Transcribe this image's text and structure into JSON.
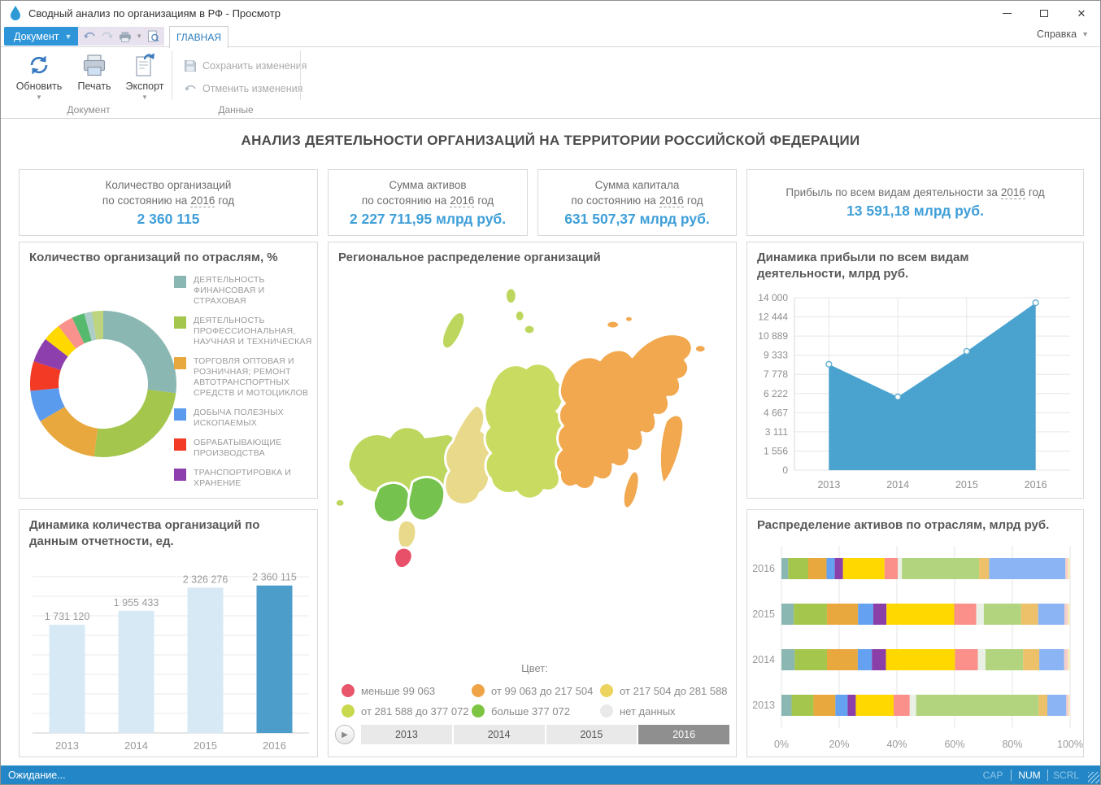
{
  "window": {
    "title": "Сводный анализ по организациям в РФ - Просмотр",
    "help_label": "Справка"
  },
  "menubar": {
    "document_button": "Документ",
    "active_tab": "ГЛАВНАЯ"
  },
  "ribbon": {
    "refresh_label": "Обновить",
    "print_label": "Печать",
    "export_label": "Экспорт",
    "save_label": "Сохранить изменения",
    "undo_label": "Отменить изменения",
    "group_document": "Документ",
    "group_data": "Данные"
  },
  "page_title": "АНАЛИЗ ДЕЯТЕЛЬНОСТИ ОРГАНИЗАЦИЙ НА ТЕРРИТОРИИ РОССИЙСКОЙ ФЕДЕРАЦИИ",
  "kpis": [
    {
      "line1": "Количество организаций",
      "line2a": "по состоянию на",
      "year": "2016",
      "line2b": "год",
      "value": "2 360 115"
    },
    {
      "line1": "Сумма активов",
      "line2a": "по состоянию на",
      "year": "2016",
      "line2b": "год",
      "value": "2 227 711,95 млрд руб."
    },
    {
      "line1": "Сумма капитала",
      "line2a": "по состоянию на",
      "year": "2016",
      "line2b": "год",
      "value": "631 507,37 млрд руб."
    },
    {
      "line1a": "Прибыль по всем видам деятельности за",
      "year": "2016",
      "line1b": "год",
      "value": "13 591,18 млрд руб."
    }
  ],
  "map": {
    "title": "Региональное распределение организаций",
    "legend_title": "Цвет:",
    "legend": [
      {
        "label": "меньше 99 063",
        "color": "#e8566b"
      },
      {
        "label": "от 99 063 до 217 504",
        "color": "#f0a347"
      },
      {
        "label": "от 217 504 до 281 588",
        "color": "#ecd45f"
      },
      {
        "label": "от 281 588 до 377 072",
        "color": "#c8d94e"
      },
      {
        "label": "больше 377 072",
        "color": "#7cc442"
      },
      {
        "label": "нет данных",
        "color": "#e9e9e9"
      }
    ],
    "regions": [
      {
        "name": "northwest",
        "color": "#bdd75e"
      },
      {
        "name": "kaliningrad",
        "color": "#bdd75e"
      },
      {
        "name": "volga-ural",
        "color": "#e9d98b"
      },
      {
        "name": "central-1",
        "color": "#76c24f"
      },
      {
        "name": "central-2",
        "color": "#76c24f"
      },
      {
        "name": "south",
        "color": "#e9d98b"
      },
      {
        "name": "crimea",
        "color": "#e8506a"
      },
      {
        "name": "siberia",
        "color": "#c9db60"
      },
      {
        "name": "far-east",
        "color": "#f1a84f"
      },
      {
        "name": "kamchatka",
        "color": "#f1a84f"
      },
      {
        "name": "sakhalin",
        "color": "#f1a84f"
      },
      {
        "name": "north-islands",
        "color": "#bdd75e"
      },
      {
        "name": "east-islands",
        "color": "#f1a84f"
      }
    ],
    "timeline": {
      "years": [
        "2013",
        "2014",
        "2015",
        "2016"
      ],
      "selected": "2016"
    }
  },
  "chart_data": [
    {
      "id": "industry-donut",
      "type": "pie",
      "donut": true,
      "title": "Количество организаций по отраслям, %",
      "values": [
        27,
        25,
        14.5,
        7,
        6.5,
        5.5,
        4,
        3.5,
        2.8,
        1.7,
        2.5
      ],
      "colors": [
        "#8ab7b2",
        "#a4c64d",
        "#e9a83e",
        "#5b9bee",
        "#f23a25",
        "#8e3fae",
        "#ffd800",
        "#f9928c",
        "#55b96e",
        "#adcdc9",
        "#bdd37e"
      ],
      "legend_position": "right",
      "legend": [
        "ДЕЯТЕЛЬНОСТЬ ФИНАНСОВАЯ И СТРАХОВАЯ",
        "ДЕЯТЕЛЬНОСТЬ ПРОФЕССИОНАЛЬНАЯ, НАУЧНАЯ И ТЕХНИЧЕСКАЯ",
        "ТОРГОВЛЯ ОПТОВАЯ И РОЗНИЧНАЯ; РЕМОНТ АВТОТРАНСПОРТНЫХ СРЕДСТВ И МОТОЦИКЛОВ",
        "ДОБЫЧА ПОЛЕЗНЫХ ИСКОПАЕМЫХ",
        "ОБРАБАТЫВАЮЩИЕ ПРОИЗВОДСТВА",
        "ТРАНСПОРТИРОВКА И ХРАНЕНИЕ"
      ]
    },
    {
      "id": "profit-area",
      "type": "area",
      "title": "Динамика прибыли по всем видам деятельности, млрд руб.",
      "x": [
        "2013",
        "2014",
        "2015",
        "2016"
      ],
      "values": [
        8600,
        5950,
        9650,
        13591.18
      ],
      "ylim": [
        0,
        14000
      ],
      "yticks": [
        "0",
        "1 556",
        "3 111",
        "4 667",
        "6 222",
        "7 778",
        "9 333",
        "10 889",
        "12 444",
        "14 000"
      ],
      "color": "#4aa3cf",
      "marker_stroke": "#62afd0",
      "grid": true
    },
    {
      "id": "orgs-bar",
      "type": "bar",
      "title": "Динамика количества организаций по данным отчетности, ед.",
      "categories": [
        "2013",
        "2014",
        "2015",
        "2016"
      ],
      "values": [
        1731120,
        1955433,
        2326276,
        2360115
      ],
      "value_labels": [
        "1 731 120",
        "1 955 433",
        "2 326 276",
        "2 360 115"
      ],
      "bar_colors": [
        "#d7e9f5",
        "#d7e9f5",
        "#d7e9f5",
        "#4c9dc9"
      ],
      "ylim": [
        0,
        2500000
      ],
      "grid": true
    },
    {
      "id": "assets-stacked",
      "type": "stacked-bar-horizontal",
      "title": "Распределение активов по отраслям, млрд руб.",
      "categories": [
        "2016",
        "2015",
        "2014",
        "2013"
      ],
      "xticks": [
        "0%",
        "20%",
        "40%",
        "60%",
        "80%",
        "100%"
      ],
      "colors": [
        "#8ab7b2",
        "#a4c64d",
        "#e9a83e",
        "#64a1f0",
        "#8b3fa8",
        "#ffd800",
        "#fb8f8a",
        "#e9f0e5",
        "#b2d47f",
        "#ecc169",
        "#8ab4f4",
        "#f6cdc8",
        "#f5ecc0"
      ],
      "rows": {
        "2016": [
          2.3,
          6.8,
          6.2,
          2.8,
          2.8,
          14.1,
          4.5,
          1.4,
          26.2,
          3.4,
          25.9,
          0.8,
          0.8
        ],
        "2015": [
          4.2,
          11.3,
          10.6,
          5.2,
          4.5,
          23.1,
          7.5,
          2.6,
          12.7,
          5.8,
          9.0,
          1.1,
          0.8
        ],
        "2014": [
          4.5,
          11.0,
          10.5,
          4.8,
          4.8,
          23.5,
          7.8,
          2.6,
          12.8,
          5.5,
          8.5,
          1.2,
          0.8
        ],
        "2013": [
          3.5,
          7.5,
          7.5,
          4.2,
          2.8,
          13.0,
          5.5,
          2.2,
          42.0,
          3.0,
          6.5,
          0.8,
          0.5
        ]
      },
      "grid": true
    }
  ],
  "statusbar": {
    "text": "Ожидание...",
    "indicators": [
      {
        "label": "CAP",
        "active": false
      },
      {
        "label": "NUM",
        "active": true
      },
      {
        "label": "SCRL",
        "active": false
      }
    ]
  }
}
